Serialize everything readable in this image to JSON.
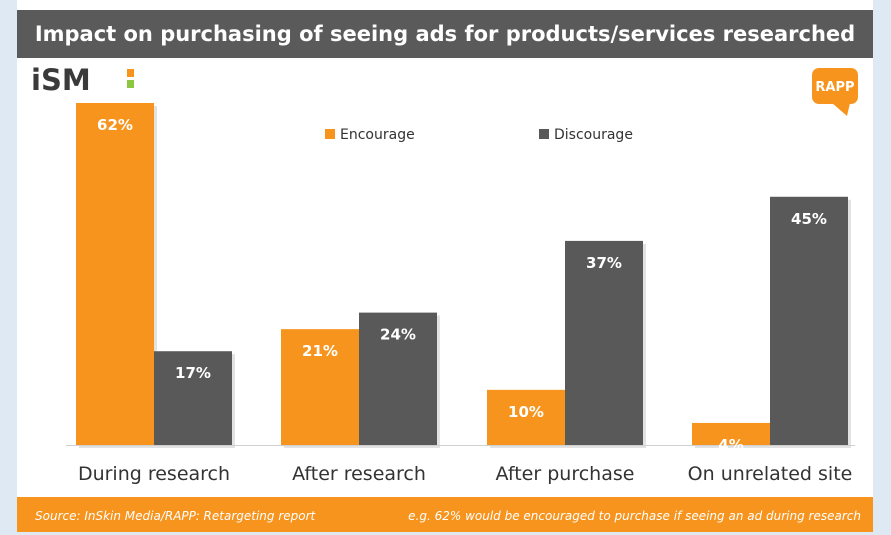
{
  "title": "Impact on purchasing of seeing ads for products/services researched",
  "logos": {
    "left": "iSM",
    "right": "RAPP"
  },
  "colors": {
    "encourage": "#f7941d",
    "discourage": "#595959",
    "title_bar": "#5a5a5a",
    "footer": "#f7941d"
  },
  "footer": {
    "source": "Source: InSkin Media/RAPP: Retargeting report",
    "note": "e.g. 62% would be encouraged to purchase if seeing an ad during research"
  },
  "chart_data": {
    "type": "bar",
    "categories": [
      "During research",
      "After research",
      "After purchase",
      "On unrelated site"
    ],
    "series": [
      {
        "name": "Encourage",
        "values": [
          62,
          21,
          10,
          4
        ],
        "labels": [
          "62%",
          "21%",
          "10%",
          "4%"
        ]
      },
      {
        "name": "Discourage",
        "values": [
          17,
          24,
          37,
          45
        ],
        "labels": [
          "17%",
          "24%",
          "37%",
          "45%"
        ]
      }
    ],
    "ylim": [
      0,
      62
    ],
    "legend": "top-center",
    "grid": false
  }
}
